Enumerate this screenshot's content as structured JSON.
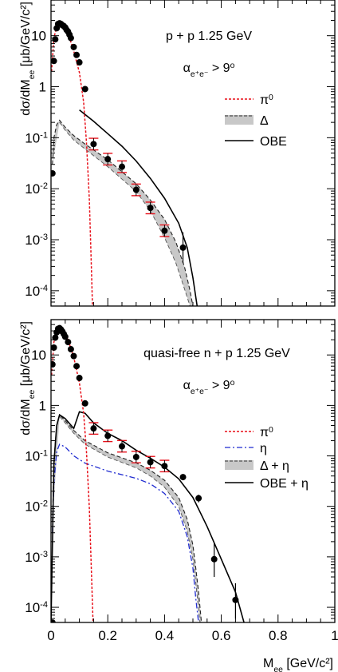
{
  "chart_data": [
    {
      "type": "line",
      "id": "top",
      "xlim": [
        0,
        1.0
      ],
      "ylim_log10": [
        -4.3,
        1.7
      ],
      "yscale": "log",
      "ylabel": {
        "main": "dσ/dM",
        "sub": "ee",
        "units": "[μb/GeV/c²]"
      },
      "y_ticks": [
        {
          "value": 10,
          "label": "10"
        },
        {
          "value": 1,
          "label": "1"
        },
        {
          "value": 0.1,
          "base": "10",
          "exp": "-1"
        },
        {
          "value": 0.01,
          "base": "10",
          "exp": "-2"
        },
        {
          "value": 0.001,
          "base": "10",
          "exp": "-3"
        },
        {
          "value": 0.0001,
          "base": "10",
          "exp": "-4"
        }
      ],
      "annotation": {
        "reaction": "p + p  1.25 GeV",
        "cut_alpha": "α",
        "cut_sub": "e⁺e⁻",
        "cut_rest": " > 9",
        "cut_sup": "o"
      },
      "legend": [
        {
          "label": "π",
          "sup": "0",
          "style": "dashed-red"
        },
        {
          "label": "Δ",
          "style": "band-gray"
        },
        {
          "label": "OBE",
          "style": "solid-black"
        }
      ],
      "colors": {
        "pi0": "#e8101a",
        "band": "#c8c8c8",
        "obe": "#000000",
        "data": "#000000",
        "syst": "#e8101a"
      },
      "series": {
        "pi0": [
          [
            0.002,
            2
          ],
          [
            0.01,
            9
          ],
          [
            0.02,
            15
          ],
          [
            0.03,
            16
          ],
          [
            0.045,
            15
          ],
          [
            0.06,
            11
          ],
          [
            0.08,
            5
          ],
          [
            0.1,
            1.9
          ],
          [
            0.115,
            0.5
          ],
          [
            0.125,
            0.08
          ],
          [
            0.135,
            0.006
          ],
          [
            0.142,
            0.0003
          ],
          [
            0.146,
            5e-05
          ]
        ],
        "delta_upper": [
          [
            0.005,
            0.03
          ],
          [
            0.01,
            0.1
          ],
          [
            0.02,
            0.18
          ],
          [
            0.03,
            0.22
          ],
          [
            0.05,
            0.16
          ],
          [
            0.08,
            0.11
          ],
          [
            0.12,
            0.075
          ],
          [
            0.2,
            0.037
          ],
          [
            0.3,
            0.0125
          ],
          [
            0.35,
            0.006
          ],
          [
            0.4,
            0.0025
          ],
          [
            0.44,
            0.0009
          ],
          [
            0.47,
            0.0003
          ],
          [
            0.49,
            0.0001
          ],
          [
            0.5,
            5e-05
          ]
        ],
        "delta_lower": [
          [
            0.03,
            0.2
          ],
          [
            0.05,
            0.14
          ],
          [
            0.08,
            0.09
          ],
          [
            0.12,
            0.06
          ],
          [
            0.2,
            0.027
          ],
          [
            0.3,
            0.0088
          ],
          [
            0.35,
            0.0037
          ],
          [
            0.4,
            0.0011
          ],
          [
            0.44,
            0.00035
          ],
          [
            0.47,
            0.00011
          ],
          [
            0.49,
            5e-05
          ]
        ],
        "obe": [
          [
            0.1,
            0.35
          ],
          [
            0.15,
            0.21
          ],
          [
            0.2,
            0.12
          ],
          [
            0.25,
            0.068
          ],
          [
            0.3,
            0.035
          ],
          [
            0.35,
            0.016
          ],
          [
            0.4,
            0.0065
          ],
          [
            0.45,
            0.0021
          ],
          [
            0.48,
            0.0007
          ],
          [
            0.5,
            0.00018
          ],
          [
            0.515,
            5e-05
          ]
        ],
        "points": [
          {
            "x": 0.005,
            "y": 0.02
          },
          {
            "x": 0.01,
            "y": 3.2
          },
          {
            "x": 0.015,
            "y": 8.5
          },
          {
            "x": 0.02,
            "y": 14
          },
          {
            "x": 0.025,
            "y": 17
          },
          {
            "x": 0.03,
            "y": 17.5
          },
          {
            "x": 0.035,
            "y": 17
          },
          {
            "x": 0.04,
            "y": 16
          },
          {
            "x": 0.045,
            "y": 15.5
          },
          {
            "x": 0.05,
            "y": 14.5
          },
          {
            "x": 0.055,
            "y": 13
          },
          {
            "x": 0.06,
            "y": 12
          },
          {
            "x": 0.065,
            "y": 10.5
          },
          {
            "x": 0.07,
            "y": 9
          },
          {
            "x": 0.08,
            "y": 6
          },
          {
            "x": 0.09,
            "y": 4.2
          },
          {
            "x": 0.1,
            "y": 3
          },
          {
            "x": 0.12,
            "y": 0.9
          },
          {
            "x": 0.15,
            "y": 0.075,
            "syst": true
          },
          {
            "x": 0.2,
            "y": 0.038,
            "syst": true
          },
          {
            "x": 0.25,
            "y": 0.027,
            "syst": true
          },
          {
            "x": 0.3,
            "y": 0.0095,
            "syst": true
          },
          {
            "x": 0.35,
            "y": 0.0042,
            "syst": true
          },
          {
            "x": 0.4,
            "y": 0.0015,
            "syst": true
          },
          {
            "x": 0.465,
            "y": 0.0007,
            "err": [
              0.00035,
              0.0014
            ]
          }
        ]
      }
    },
    {
      "type": "line",
      "id": "bottom",
      "xlim": [
        0,
        1.0
      ],
      "ylim_log10": [
        -4.3,
        1.7
      ],
      "yscale": "log",
      "xlabel": {
        "main": "M",
        "sub": "ee",
        "units": "[GeV/c²]"
      },
      "x_ticks": [
        {
          "value": 0,
          "label": "0"
        },
        {
          "value": 0.2,
          "label": "0.2"
        },
        {
          "value": 0.4,
          "label": "0.4"
        },
        {
          "value": 0.6,
          "label": "0.6"
        },
        {
          "value": 0.8,
          "label": "0.8"
        },
        {
          "value": 1.0,
          "label": "1"
        }
      ],
      "ylabel": {
        "main": "dσ/dM",
        "sub": "ee",
        "units": "[μb/GeV/c²]"
      },
      "y_ticks": [
        {
          "value": 10,
          "label": "10"
        },
        {
          "value": 1,
          "label": "1"
        },
        {
          "value": 0.1,
          "base": "10",
          "exp": "-1"
        },
        {
          "value": 0.01,
          "base": "10",
          "exp": "-2"
        },
        {
          "value": 0.001,
          "base": "10",
          "exp": "-3"
        },
        {
          "value": 0.0001,
          "base": "10",
          "exp": "-4"
        }
      ],
      "annotation": {
        "reaction": "quasi-free n + p  1.25 GeV",
        "cut_alpha": "α",
        "cut_sub": "e⁺e⁻",
        "cut_rest": " > 9",
        "cut_sup": "o"
      },
      "legend": [
        {
          "label": "π",
          "sup": "0",
          "style": "dashed-red"
        },
        {
          "label": "η",
          "style": "dashdot-blue"
        },
        {
          "label": "Δ + η",
          "style": "band-gray"
        },
        {
          "label": "OBE + η",
          "style": "solid-black"
        }
      ],
      "colors": {
        "pi0": "#e8101a",
        "eta": "#1f2bd0",
        "band": "#c8c8c8",
        "obe": "#000000",
        "data": "#000000",
        "syst": "#e8101a"
      },
      "series": {
        "pi0": [
          [
            0.002,
            4
          ],
          [
            0.01,
            18
          ],
          [
            0.02,
            27
          ],
          [
            0.03,
            30
          ],
          [
            0.045,
            27
          ],
          [
            0.06,
            20
          ],
          [
            0.08,
            9
          ],
          [
            0.1,
            2.8
          ],
          [
            0.115,
            0.7
          ],
          [
            0.125,
            0.12
          ],
          [
            0.135,
            0.009
          ],
          [
            0.143,
            0.0004
          ],
          [
            0.148,
            5e-05
          ]
        ],
        "eta": [
          [
            0.005,
            0.003
          ],
          [
            0.01,
            0.03
          ],
          [
            0.02,
            0.12
          ],
          [
            0.03,
            0.17
          ],
          [
            0.05,
            0.15
          ],
          [
            0.08,
            0.1
          ],
          [
            0.12,
            0.072
          ],
          [
            0.2,
            0.05
          ],
          [
            0.3,
            0.036
          ],
          [
            0.35,
            0.028
          ],
          [
            0.4,
            0.018
          ],
          [
            0.45,
            0.008
          ],
          [
            0.48,
            0.0025
          ],
          [
            0.5,
            0.0006
          ],
          [
            0.51,
            0.00015
          ],
          [
            0.52,
            5e-05
          ]
        ],
        "delta_upper": [
          [
            0.005,
            0.005
          ],
          [
            0.01,
            0.08
          ],
          [
            0.02,
            0.4
          ],
          [
            0.03,
            0.65
          ],
          [
            0.05,
            0.5
          ],
          [
            0.08,
            0.32
          ],
          [
            0.12,
            0.2
          ],
          [
            0.2,
            0.115
          ],
          [
            0.3,
            0.073
          ],
          [
            0.35,
            0.052
          ],
          [
            0.4,
            0.033
          ],
          [
            0.45,
            0.015
          ],
          [
            0.48,
            0.0055
          ],
          [
            0.5,
            0.0017
          ],
          [
            0.51,
            0.0006
          ],
          [
            0.52,
            0.0002
          ],
          [
            0.53,
            5e-05
          ]
        ],
        "delta_lower": [
          [
            0.03,
            0.6
          ],
          [
            0.05,
            0.45
          ],
          [
            0.08,
            0.28
          ],
          [
            0.12,
            0.17
          ],
          [
            0.2,
            0.095
          ],
          [
            0.3,
            0.058
          ],
          [
            0.35,
            0.04
          ],
          [
            0.4,
            0.024
          ],
          [
            0.45,
            0.01
          ],
          [
            0.48,
            0.0032
          ],
          [
            0.5,
            0.0009
          ],
          [
            0.51,
            0.0003
          ],
          [
            0.52,
            9e-05
          ],
          [
            0.525,
            5e-05
          ]
        ],
        "obe": [
          [
            0.0,
            5e-05
          ],
          [
            0.01,
            0.07
          ],
          [
            0.02,
            0.4
          ],
          [
            0.03,
            0.65
          ],
          [
            0.05,
            0.55
          ],
          [
            0.08,
            0.35
          ],
          [
            0.1,
            0.75
          ],
          [
            0.12,
            0.7
          ],
          [
            0.15,
            0.45
          ],
          [
            0.2,
            0.28
          ],
          [
            0.25,
            0.2
          ],
          [
            0.3,
            0.13
          ],
          [
            0.35,
            0.09
          ],
          [
            0.4,
            0.06
          ],
          [
            0.45,
            0.035
          ],
          [
            0.5,
            0.015
          ],
          [
            0.55,
            0.004
          ],
          [
            0.6,
            0.0009
          ],
          [
            0.65,
            0.0002
          ],
          [
            0.68,
            5e-05
          ]
        ],
        "points": [
          {
            "x": 0.005,
            "y": 6.5
          },
          {
            "x": 0.01,
            "y": 14
          },
          {
            "x": 0.015,
            "y": 22
          },
          {
            "x": 0.02,
            "y": 28
          },
          {
            "x": 0.025,
            "y": 33
          },
          {
            "x": 0.03,
            "y": 34
          },
          {
            "x": 0.035,
            "y": 32
          },
          {
            "x": 0.04,
            "y": 29
          },
          {
            "x": 0.045,
            "y": 26
          },
          {
            "x": 0.05,
            "y": 23
          },
          {
            "x": 0.06,
            "y": 18
          },
          {
            "x": 0.07,
            "y": 13
          },
          {
            "x": 0.08,
            "y": 9.5
          },
          {
            "x": 0.09,
            "y": 6
          },
          {
            "x": 0.1,
            "y": 3.5
          },
          {
            "x": 0.12,
            "y": 1.1
          },
          {
            "x": 0.15,
            "y": 0.35,
            "syst": true
          },
          {
            "x": 0.2,
            "y": 0.25,
            "syst": true
          },
          {
            "x": 0.25,
            "y": 0.155,
            "syst": true
          },
          {
            "x": 0.3,
            "y": 0.095,
            "syst": true
          },
          {
            "x": 0.35,
            "y": 0.075,
            "syst": true
          },
          {
            "x": 0.4,
            "y": 0.063,
            "syst": true
          },
          {
            "x": 0.465,
            "y": 0.038
          },
          {
            "x": 0.52,
            "y": 0.0145,
            "err": [
              0.012,
              0.017
            ]
          },
          {
            "x": 0.575,
            "y": 0.0009,
            "err": [
              0.0004,
              0.0019
            ]
          },
          {
            "x": 0.65,
            "y": 0.00014,
            "err": [
              6e-05,
              0.0003
            ]
          },
          {
            "x": 0.005,
            "y": 5e-05
          }
        ]
      }
    }
  ]
}
